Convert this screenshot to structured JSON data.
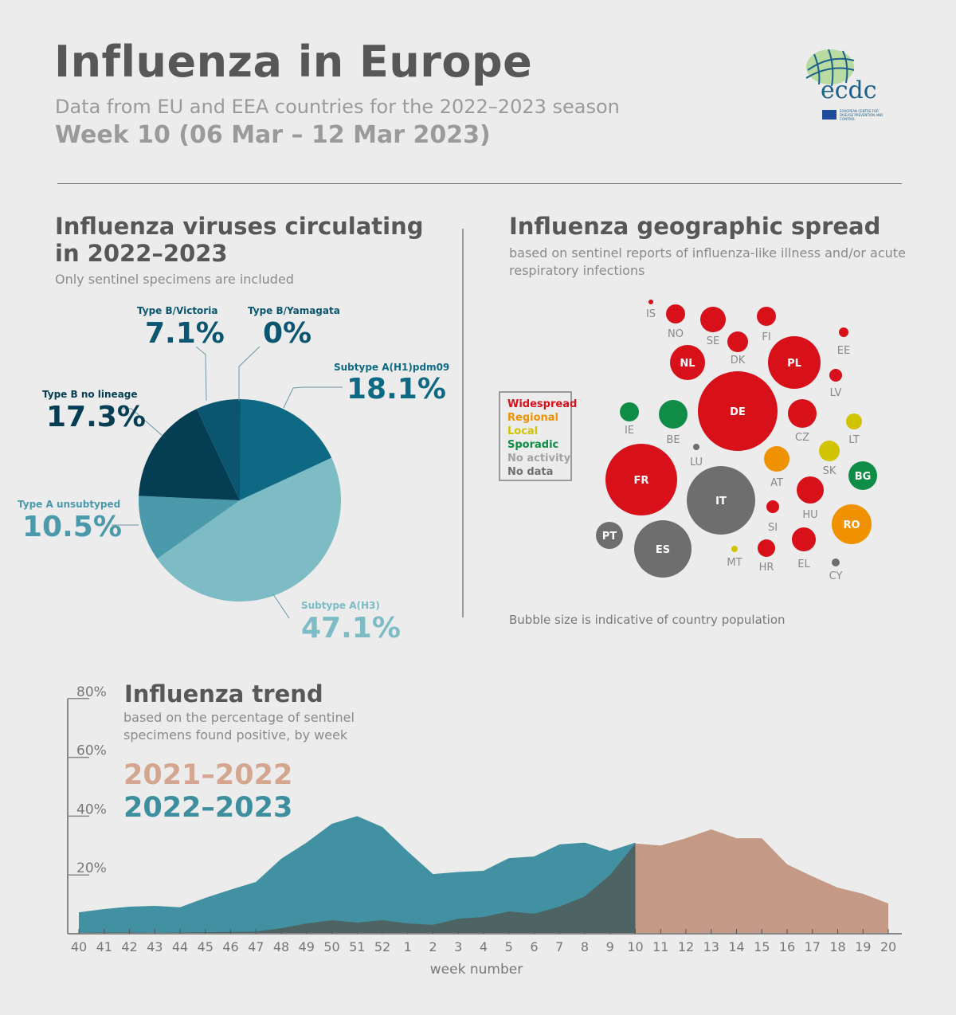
{
  "header": {
    "title": "Influenza in Europe",
    "subtitle": "Data from EU and EEA countries for the 2022–2023 season",
    "week": "Week 10 (06 Mar – 12 Mar 2023)",
    "logo_text": "ecdc",
    "logo_subtext": "EUROPEAN CENTRE FOR DISEASE PREVENTION AND CONTROL"
  },
  "viruses": {
    "title_line1": "Influenza viruses circulating",
    "title_line2": "in 2022–2023",
    "note": "Only sentinel specimens are included"
  },
  "spread": {
    "title": "Influenza geographic spread",
    "note_line1": "based on sentinel reports of influenza-like illness and/or acute",
    "note_line2": "respiratory infections",
    "footnote": "Bubble size is indicative of country population",
    "legend": [
      {
        "key": "widespread",
        "label": "Widespread",
        "color": "#d7101a"
      },
      {
        "key": "regional",
        "label": "Regional",
        "color": "#f09200"
      },
      {
        "key": "local",
        "label": "Local",
        "color": "#d2c300"
      },
      {
        "key": "sporadic",
        "label": "Sporadic",
        "color": "#0f8c45"
      },
      {
        "key": "no_activity",
        "label": "No activity",
        "color": "#a3a3a3"
      },
      {
        "key": "no_data",
        "label": "No data",
        "color": "#6e6e6e"
      }
    ]
  },
  "trend": {
    "title": "Influenza trend",
    "note_line1": "based on the percentage of sentinel",
    "note_line2": "specimens found positive, by week"
  },
  "chart_data": [
    {
      "type": "pie",
      "slices": [
        {
          "label": "Subtype A(H1)pdm09",
          "value": 18.1,
          "display": "18.1%",
          "color": "#0e6a84"
        },
        {
          "label": "Subtype A(H3)",
          "value": 47.1,
          "display": "47.1%",
          "color": "#7dbcc4"
        },
        {
          "label": "Type A unsubtyped",
          "value": 10.5,
          "display": "10.5%",
          "color": "#4a9aab"
        },
        {
          "label": "Type B no lineage",
          "value": 17.3,
          "display": "17.3%",
          "color": "#053d53"
        },
        {
          "label": "Type B/Victoria",
          "value": 7.1,
          "display": "7.1%",
          "color": "#0a5570"
        },
        {
          "label": "Type B/Yamagata",
          "value": 0,
          "display": "0%",
          "color": "#0a5570"
        }
      ]
    },
    {
      "type": "bubble",
      "countries": [
        {
          "code": "IS",
          "status": "widespread"
        },
        {
          "code": "NO",
          "status": "widespread"
        },
        {
          "code": "SE",
          "status": "widespread"
        },
        {
          "code": "FI",
          "status": "widespread"
        },
        {
          "code": "DK",
          "status": "widespread"
        },
        {
          "code": "EE",
          "status": "widespread"
        },
        {
          "code": "NL",
          "status": "widespread"
        },
        {
          "code": "PL",
          "status": "widespread"
        },
        {
          "code": "LV",
          "status": "widespread"
        },
        {
          "code": "DE",
          "status": "widespread"
        },
        {
          "code": "IE",
          "status": "sporadic"
        },
        {
          "code": "BE",
          "status": "sporadic"
        },
        {
          "code": "CZ",
          "status": "widespread"
        },
        {
          "code": "LT",
          "status": "local"
        },
        {
          "code": "LU",
          "status": "no_data"
        },
        {
          "code": "AT",
          "status": "regional"
        },
        {
          "code": "SK",
          "status": "local"
        },
        {
          "code": "BG",
          "status": "sporadic"
        },
        {
          "code": "FR",
          "status": "widespread"
        },
        {
          "code": "IT",
          "status": "no_data"
        },
        {
          "code": "HU",
          "status": "widespread"
        },
        {
          "code": "SI",
          "status": "widespread"
        },
        {
          "code": "RO",
          "status": "regional"
        },
        {
          "code": "PT",
          "status": "no_data"
        },
        {
          "code": "ES",
          "status": "no_data"
        },
        {
          "code": "MT",
          "status": "local"
        },
        {
          "code": "HR",
          "status": "widespread"
        },
        {
          "code": "EL",
          "status": "widespread"
        },
        {
          "code": "CY",
          "status": "no_data"
        }
      ]
    },
    {
      "type": "area",
      "xlabel": "week number",
      "weeks": [
        "40",
        "41",
        "42",
        "43",
        "44",
        "45",
        "46",
        "47",
        "48",
        "49",
        "50",
        "51",
        "52",
        "1",
        "2",
        "3",
        "4",
        "5",
        "6",
        "7",
        "8",
        "9",
        "10",
        "11",
        "12",
        "13",
        "14",
        "15",
        "16",
        "17",
        "18",
        "19",
        "20"
      ],
      "yticks": [
        "20%",
        "40%",
        "60%",
        "80%"
      ],
      "ylim": [
        0,
        80
      ],
      "series": [
        {
          "name": "2021–2022",
          "color": "#c49a86",
          "legend_color": "#d4a58f",
          "values": [
            0.3,
            0.4,
            0.4,
            0.3,
            0.4,
            0.5,
            0.6,
            0.7,
            1.9,
            3.5,
            4.6,
            3.8,
            4.6,
            3.5,
            3.0,
            5.1,
            5.7,
            7.6,
            6.8,
            9.2,
            12.7,
            20.0,
            30.7,
            30.0,
            32.5,
            35.5,
            32.5,
            32.5,
            23.6,
            19.5,
            15.7,
            13.6,
            10.3
          ]
        },
        {
          "name": "2022–2023",
          "color": "#4291a2",
          "legend_color": "#3d8fa0",
          "values": [
            7.3,
            8.4,
            9.2,
            9.5,
            9.0,
            12.2,
            15.0,
            17.6,
            25.5,
            31.0,
            37.4,
            40.0,
            36.3,
            28.0,
            20.3,
            21.0,
            21.4,
            25.7,
            26.3,
            30.4,
            31.0,
            28.2,
            31.0
          ]
        }
      ],
      "overlap_color": "#4e6464"
    }
  ]
}
